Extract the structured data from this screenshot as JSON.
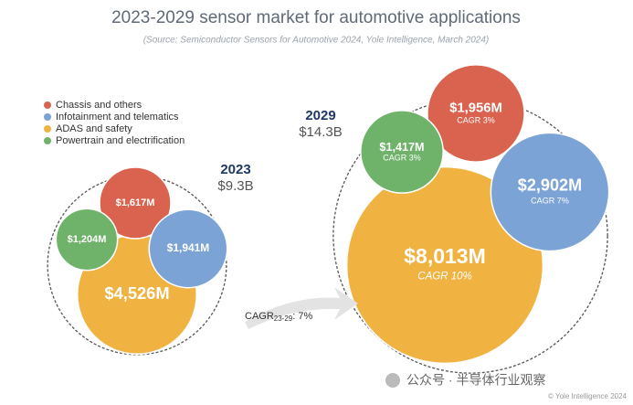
{
  "chart_data": {
    "type": "packed-bubble",
    "title": "2023-2029 sensor market for automotive applications",
    "subtitle": "(Source: Semiconductor Sensors for Automotive 2024, Yole Intelligence, March 2024)",
    "series": [
      {
        "name": "Chassis and others",
        "color": "#d9634f"
      },
      {
        "name": "Infotainment and telematics",
        "color": "#7ba3d6"
      },
      {
        "name": "ADAS and safety",
        "color": "#f0b341"
      },
      {
        "name": "Powertrain and electrification",
        "color": "#6fb26a"
      }
    ],
    "groups": [
      {
        "year": "2023",
        "total": 9.3,
        "total_label": "$9.3B",
        "values": [
          1617,
          1941,
          4526,
          1204
        ],
        "value_labels": [
          "$1,617M",
          "$1,941M",
          "$4,526M",
          "$1,204M"
        ]
      },
      {
        "year": "2029",
        "total": 14.3,
        "total_label": "$14.3B",
        "values": [
          1956,
          2902,
          8013,
          1417
        ],
        "value_labels": [
          "$1,956M",
          "$2,902M",
          "$8,013M",
          "$1,417M"
        ],
        "cagrs": [
          3,
          7,
          10,
          3
        ],
        "cagr_labels": [
          "CAGR 3%",
          "CAGR 7%",
          "CAGR 10%",
          "CAGR 3%"
        ]
      }
    ],
    "cagr": {
      "label": "CAGR",
      "period": "23-29",
      "value": 7,
      "value_label": ": 7%"
    },
    "watermark": "公众号 · 半导体行业观察",
    "copyright": "© Yole Intelligence 2024"
  }
}
